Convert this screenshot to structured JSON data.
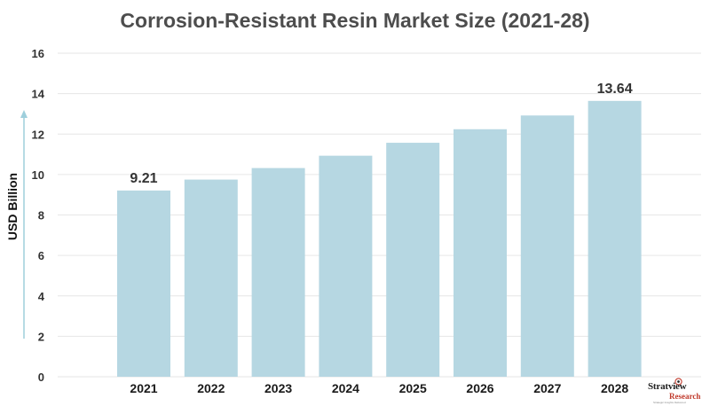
{
  "chart_data": {
    "type": "bar",
    "title": "Corrosion-Resistant Resin Market Size (2021-28)",
    "ylabel": "USD Billion",
    "xlabel": "",
    "categories": [
      "2021",
      "2022",
      "2023",
      "2024",
      "2025",
      "2026",
      "2027",
      "2028"
    ],
    "values": [
      9.21,
      9.75,
      10.32,
      10.93,
      11.57,
      12.24,
      12.92,
      13.64
    ],
    "data_labels": [
      {
        "category": "2021",
        "text": "9.21"
      },
      {
        "category": "2028",
        "text": "13.64"
      }
    ],
    "ylim": [
      0,
      16
    ],
    "yticks": [
      0,
      2,
      4,
      6,
      8,
      10,
      12,
      14,
      16
    ],
    "grid": true,
    "bar_color": "#b6d7e2",
    "grid_color": "#e6e6e6"
  },
  "logo": {
    "name": "Stratview",
    "sub": "Research",
    "tagline": "Strategic Insights Delivered"
  }
}
